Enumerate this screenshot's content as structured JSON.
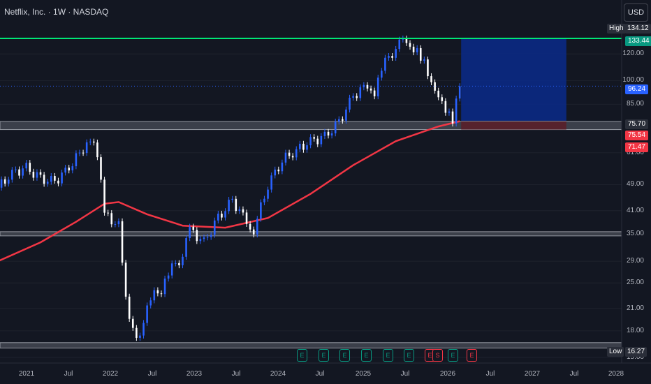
{
  "header": {
    "title": "Netflix, Inc. · 1W · NASDAQ",
    "currency": "USD"
  },
  "price_axis": {
    "ticks": [
      "120.00",
      "100.00",
      "85.00",
      "61.00",
      "49.00",
      "41.00",
      "35.00",
      "29.00",
      "25.00",
      "21.00",
      "18.00",
      "15.00"
    ],
    "high_label": "High",
    "high_value": "134.12",
    "low_label": "Low",
    "low_value": "16.27",
    "tags": [
      {
        "value": "133.44",
        "color": "#089981"
      },
      {
        "value": "96.24",
        "color": "#2962ff"
      },
      {
        "value": "75.70",
        "color": "#2a2e39"
      },
      {
        "value": "75.54",
        "color": "#f23645"
      },
      {
        "value": "71.47",
        "color": "#f23645"
      }
    ]
  },
  "time_axis": {
    "ticks": [
      "2021",
      "Jul",
      "2022",
      "Jul",
      "2023",
      "Jul",
      "2024",
      "Jul",
      "2025",
      "Jul",
      "2026",
      "Jul",
      "2027",
      "Jul",
      "2028"
    ]
  },
  "events": {
    "earnings": [
      {
        "glyph": "E",
        "color": "green"
      },
      {
        "glyph": "E",
        "color": "green"
      },
      {
        "glyph": "E",
        "color": "green"
      },
      {
        "glyph": "E",
        "color": "green"
      },
      {
        "glyph": "E",
        "color": "green"
      },
      {
        "glyph": "E",
        "color": "green"
      },
      {
        "glyph": "E",
        "color": "red"
      },
      {
        "glyph": "S",
        "color": "red"
      },
      {
        "glyph": "E",
        "color": "green"
      },
      {
        "glyph": "E",
        "color": "red"
      }
    ]
  },
  "colors": {
    "background": "#131722",
    "up": "#2962ff",
    "down": "#ffffff",
    "ma": "#f23645",
    "resistance": "#00e676",
    "zone_fill": "#434651",
    "target": "#0b2a8a",
    "stop": "#5a1f2a"
  },
  "chart_data": {
    "type": "candlestick",
    "symbol": "Netflix, Inc.",
    "interval": "1W",
    "exchange": "NASDAQ",
    "scale": "log",
    "y_range": [
      15,
      140
    ],
    "x_range": [
      "2020-10",
      "2028-01"
    ],
    "close_series": [
      {
        "t": "2020-10",
        "v": 48.0
      },
      {
        "t": "2020-12",
        "v": 53.0
      },
      {
        "t": "2021-02",
        "v": 55.0
      },
      {
        "t": "2021-04",
        "v": 51.0
      },
      {
        "t": "2021-06",
        "v": 50.0
      },
      {
        "t": "2021-08",
        "v": 55.0
      },
      {
        "t": "2021-10",
        "v": 63.0
      },
      {
        "t": "2021-11",
        "v": 68.0
      },
      {
        "t": "2021-12",
        "v": 60.0
      },
      {
        "t": "2022-01",
        "v": 40.0
      },
      {
        "t": "2022-03",
        "v": 37.0
      },
      {
        "t": "2022-04",
        "v": 22.0
      },
      {
        "t": "2022-05",
        "v": 18.0
      },
      {
        "t": "2022-06",
        "v": 17.5
      },
      {
        "t": "2022-07",
        "v": 22.0
      },
      {
        "t": "2022-09",
        "v": 24.0
      },
      {
        "t": "2022-10",
        "v": 27.0
      },
      {
        "t": "2022-12",
        "v": 30.0
      },
      {
        "t": "2023-01",
        "v": 36.0
      },
      {
        "t": "2023-03",
        "v": 33.0
      },
      {
        "t": "2023-05",
        "v": 39.0
      },
      {
        "t": "2023-07",
        "v": 44.0
      },
      {
        "t": "2023-09",
        "v": 38.0
      },
      {
        "t": "2023-10",
        "v": 36.0
      },
      {
        "t": "2023-12",
        "v": 49.0
      },
      {
        "t": "2024-02",
        "v": 58.0
      },
      {
        "t": "2024-04",
        "v": 62.0
      },
      {
        "t": "2024-06",
        "v": 66.0
      },
      {
        "t": "2024-08",
        "v": 68.0
      },
      {
        "t": "2024-10",
        "v": 75.0
      },
      {
        "t": "2024-12",
        "v": 90.0
      },
      {
        "t": "2025-02",
        "v": 97.0
      },
      {
        "t": "2025-03",
        "v": 93.0
      },
      {
        "t": "2025-04",
        "v": 110.0
      },
      {
        "t": "2025-06",
        "v": 125.0
      },
      {
        "t": "2025-07",
        "v": 131.0
      },
      {
        "t": "2025-08",
        "v": 122.0
      },
      {
        "t": "2025-09",
        "v": 121.0
      },
      {
        "t": "2025-10",
        "v": 114.0
      },
      {
        "t": "2025-11",
        "v": 100.0
      },
      {
        "t": "2025-12",
        "v": 92.0
      },
      {
        "t": "2026-01",
        "v": 83.0
      },
      {
        "t": "2026-02",
        "v": 76.0
      },
      {
        "t": "2026-03",
        "v": 96.24
      }
    ],
    "moving_average": [
      {
        "t": "2020-10",
        "v": 29.0
      },
      {
        "t": "2021-04",
        "v": 33.0
      },
      {
        "t": "2021-09",
        "v": 38.0
      },
      {
        "t": "2022-01",
        "v": 43.0
      },
      {
        "t": "2022-03",
        "v": 43.5
      },
      {
        "t": "2022-07",
        "v": 40.0
      },
      {
        "t": "2022-12",
        "v": 37.0
      },
      {
        "t": "2023-06",
        "v": 36.5
      },
      {
        "t": "2023-12",
        "v": 39.0
      },
      {
        "t": "2024-06",
        "v": 46.0
      },
      {
        "t": "2024-12",
        "v": 56.0
      },
      {
        "t": "2025-06",
        "v": 66.0
      },
      {
        "t": "2025-12",
        "v": 73.0
      },
      {
        "t": "2026-03",
        "v": 75.7
      }
    ],
    "levels": {
      "resistance": 133.44,
      "last_price": 96.24,
      "entry": 75.7,
      "zones": [
        [
          71.47,
          75.54
        ],
        [
          34.5,
          35.5
        ],
        [
          16.0,
          16.6
        ]
      ]
    },
    "position": {
      "entry": 75.7,
      "target": 133.44,
      "stop": 71.47,
      "start": "2026-03",
      "end": "2027-06"
    },
    "high": 134.12,
    "low": 16.27
  }
}
